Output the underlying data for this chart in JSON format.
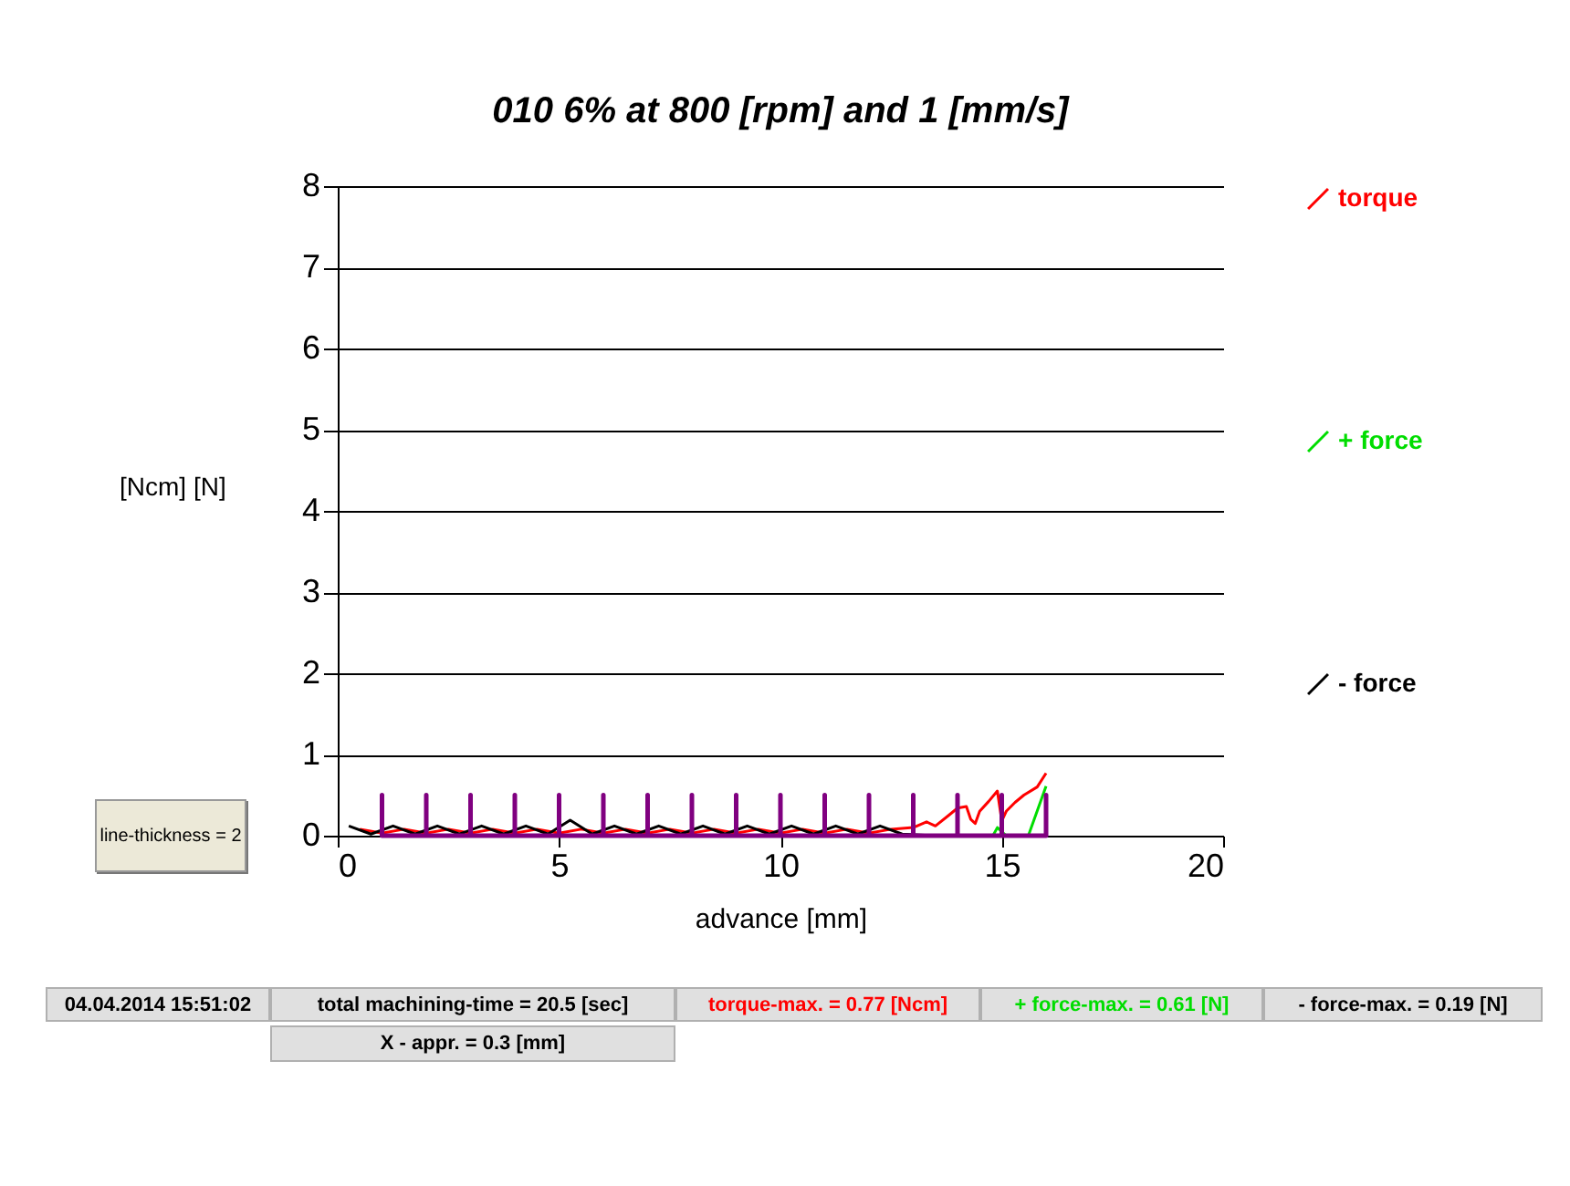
{
  "chart_data": {
    "type": "line",
    "title": "010 6% at 800 [rpm] and 1 [mm/s]",
    "xlabel": "advance [mm]",
    "ylabel": "[Ncm] [N]",
    "xlim": [
      0,
      20
    ],
    "xticks": [
      0,
      5,
      10,
      15,
      20
    ],
    "ylim": [
      0,
      8
    ],
    "yticks": [
      0,
      1,
      2,
      3,
      4,
      5,
      6,
      7,
      8
    ],
    "grid": "y",
    "legend": "right",
    "series": [
      {
        "name": "torque",
        "color": "#ff0000",
        "x": [
          0.5,
          1,
          1.5,
          2,
          2.5,
          3,
          3.5,
          4,
          4.5,
          5,
          5.5,
          6,
          6.5,
          7,
          7.5,
          8,
          8.5,
          9,
          9.5,
          10,
          10.5,
          11,
          11.5,
          12,
          12.5,
          13,
          13.3,
          13.5,
          13.8,
          14,
          14.2,
          14.3,
          14.4,
          14.5,
          14.7,
          14.9,
          15,
          15.1,
          15.3,
          15.5,
          15.8,
          16
        ],
        "values": [
          0.08,
          0.03,
          0.08,
          0.03,
          0.08,
          0.03,
          0.08,
          0.03,
          0.08,
          0.03,
          0.08,
          0.03,
          0.08,
          0.03,
          0.08,
          0.03,
          0.08,
          0.03,
          0.08,
          0.03,
          0.08,
          0.03,
          0.08,
          0.03,
          0.08,
          0.1,
          0.17,
          0.12,
          0.25,
          0.34,
          0.36,
          0.2,
          0.15,
          0.3,
          0.42,
          0.55,
          0.18,
          0.3,
          0.41,
          0.5,
          0.6,
          0.77
        ]
      },
      {
        "name": "+ force",
        "color": "#00dd00",
        "x": [
          14.8,
          14.9,
          15,
          15.1,
          15.6,
          16
        ],
        "values": [
          0,
          0.1,
          0.05,
          0,
          0,
          0.61
        ]
      },
      {
        "name": "- force",
        "color": "#000000",
        "x": [
          0.25,
          0.75,
          1.25,
          1.75,
          2.25,
          2.75,
          3.25,
          3.75,
          4.25,
          4.75,
          5.25,
          5.75,
          6.25,
          6.75,
          7.25,
          7.75,
          8.25,
          8.75,
          9.25,
          9.75,
          10.25,
          10.75,
          11.25,
          11.75,
          12.25,
          12.75,
          13.5,
          16
        ],
        "values": [
          0.12,
          0.02,
          0.12,
          0.02,
          0.12,
          0.02,
          0.12,
          0.02,
          0.12,
          0.02,
          0.19,
          0.02,
          0.12,
          0.02,
          0.12,
          0.02,
          0.12,
          0.02,
          0.12,
          0.02,
          0.12,
          0.02,
          0.12,
          0.02,
          0.12,
          0.02,
          0,
          0
        ]
      },
      {
        "color": "#800080",
        "x": [
          1,
          1,
          1,
          2,
          2,
          2,
          3,
          3,
          3,
          4,
          4,
          4,
          5,
          5,
          5,
          6,
          6,
          6,
          7,
          7,
          7,
          8,
          8,
          8,
          9,
          9,
          9,
          10,
          10,
          10,
          11,
          11,
          11,
          12,
          12,
          12,
          13,
          13,
          13,
          14,
          14,
          14,
          15,
          15,
          15,
          16,
          16,
          16
        ],
        "values": [
          0,
          0.5,
          0,
          0,
          0.5,
          0,
          0,
          0.5,
          0,
          0,
          0.5,
          0,
          0,
          0.5,
          0,
          0,
          0.5,
          0,
          0,
          0.5,
          0,
          0,
          0.5,
          0,
          0,
          0.5,
          0,
          0,
          0.5,
          0,
          0,
          0.5,
          0,
          0,
          0.5,
          0,
          0,
          0.5,
          0,
          0,
          0.5,
          0,
          0,
          0.5,
          0,
          0,
          0.5,
          0
        ]
      }
    ],
    "annotations": [
      "line-thickness = 2",
      "04.04.2014 15:51:02",
      "total machining-time = 20.5 [sec]",
      "torque-max. = 0.77 [Ncm]",
      "+ force-max. = 0.61 [N]",
      "- force-max. = 0.19 [N]",
      "X - appr. = 0.3 [mm]"
    ]
  }
}
